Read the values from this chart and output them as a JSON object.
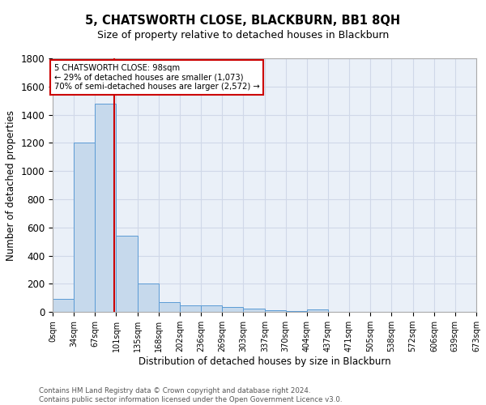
{
  "title": "5, CHATSWORTH CLOSE, BLACKBURN, BB1 8QH",
  "subtitle": "Size of property relative to detached houses in Blackburn",
  "xlabel": "Distribution of detached houses by size in Blackburn",
  "ylabel": "Number of detached properties",
  "footer_line1": "Contains HM Land Registry data © Crown copyright and database right 2024.",
  "footer_line2": "Contains public sector information licensed under the Open Government Licence v3.0.",
  "bin_edges": [
    0,
    34,
    67,
    101,
    135,
    168,
    202,
    236,
    269,
    303,
    337,
    370,
    404,
    437,
    471,
    505,
    538,
    572,
    606,
    639,
    673
  ],
  "bar_heights": [
    95,
    1200,
    1480,
    540,
    205,
    70,
    50,
    45,
    35,
    25,
    15,
    10,
    18,
    0,
    0,
    0,
    0,
    0,
    0,
    0
  ],
  "bar_color": "#c6d9ec",
  "bar_edge_color": "#5b9bd5",
  "grid_color": "#d0d8e8",
  "background_color": "#eaf0f8",
  "property_size": 98,
  "red_line_color": "#cc0000",
  "annotation_line1": "5 CHATSWORTH CLOSE: 98sqm",
  "annotation_line2": "← 29% of detached houses are smaller (1,073)",
  "annotation_line3": "70% of semi-detached houses are larger (2,572) →",
  "annotation_box_color": "white",
  "annotation_box_edge_color": "#cc0000",
  "ylim": [
    0,
    1800
  ],
  "tick_labels": [
    "0sqm",
    "34sqm",
    "67sqm",
    "101sqm",
    "135sqm",
    "168sqm",
    "202sqm",
    "236sqm",
    "269sqm",
    "303sqm",
    "337sqm",
    "370sqm",
    "404sqm",
    "437sqm",
    "471sqm",
    "505sqm",
    "538sqm",
    "572sqm",
    "606sqm",
    "639sqm",
    "673sqm"
  ]
}
